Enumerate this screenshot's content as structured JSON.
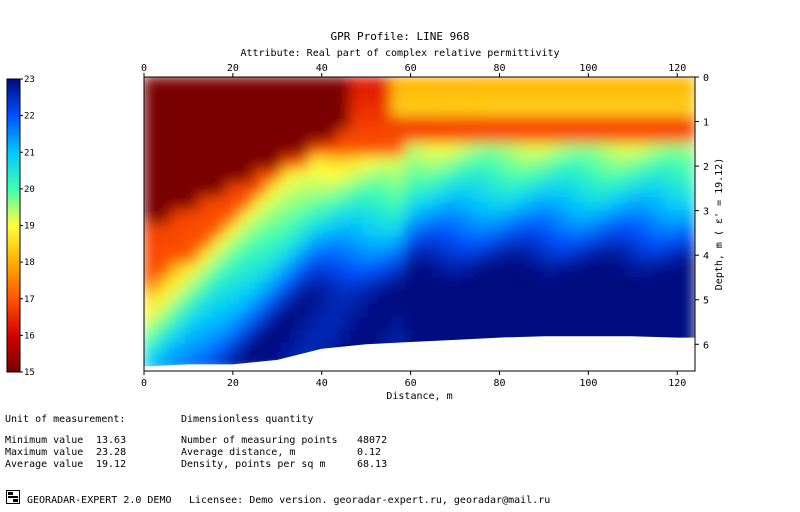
{
  "header": {
    "title": "GPR Profile: LINE 968",
    "subtitle": "Attribute:  Real part of complex relative permittivity"
  },
  "chart_data": {
    "type": "heatmap",
    "xlabel": "Distance, m",
    "ylabel": "Depth, m ( ε' = 19.12)",
    "xlim": [
      0,
      124
    ],
    "ylim": [
      0,
      6.6
    ],
    "x_ticks": [
      "0",
      "20",
      "40",
      "60",
      "80",
      "100",
      "120"
    ],
    "y_ticks": [
      "0",
      "1",
      "2",
      "3",
      "4",
      "5",
      "6"
    ],
    "colorbar": {
      "min": 15,
      "max": 23,
      "ticks": [
        "15",
        "16",
        "17",
        "18",
        "19",
        "20",
        "21",
        "22",
        "23"
      ],
      "colors": [
        "#7a0000",
        "#d40000",
        "#ff5500",
        "#ffb000",
        "#ffff40",
        "#40ffb0",
        "#00c8ff",
        "#0050ff",
        "#000a80"
      ]
    },
    "zones_description_values": {
      "surface_band_max": 18.0,
      "deep_left_max": 15.0,
      "deep_right_max": 22.8
    },
    "data_extent_bottom": {
      "x": [
        0,
        10,
        20,
        30,
        40,
        50,
        60,
        70,
        80,
        90,
        100,
        110,
        120,
        124
      ],
      "depth": [
        6.5,
        6.45,
        6.45,
        6.35,
        6.1,
        6.0,
        5.95,
        5.9,
        5.85,
        5.82,
        5.82,
        5.82,
        5.85,
        5.85
      ]
    }
  },
  "stats": {
    "unit_label": "Unit of measurement:",
    "unit_value": "Dimensionless quantity",
    "min_label": "Minimum value",
    "min_value": "13.63",
    "max_label": "Maximum value",
    "max_value": "23.28",
    "avg_label": "Average value",
    "avg_value": "19.12",
    "points_label": "Number of measuring points",
    "points_value": "48072",
    "avgdist_label": "Average distance, m",
    "avgdist_value": "0.12",
    "density_label": "Density, points per sq m",
    "density_value": "68.13"
  },
  "footer": {
    "product": "GEORADAR-EXPERT 2.0 DEMO",
    "license": "Licensee: Demo version. georadar-expert.ru, georadar@mail.ru",
    "logo_icon": "georadar-logo-icon"
  }
}
